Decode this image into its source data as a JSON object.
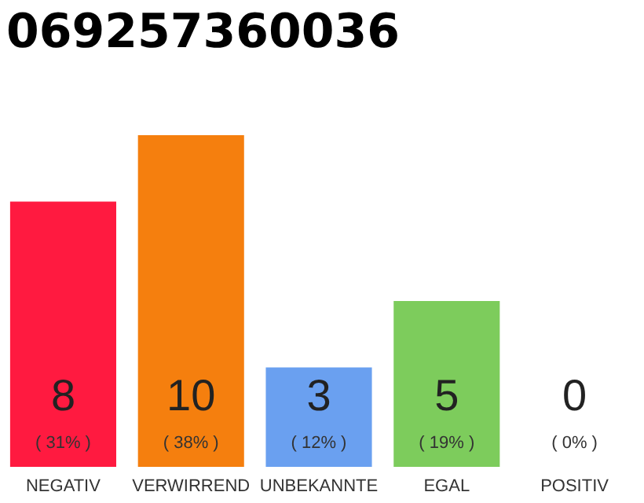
{
  "chart_data": {
    "type": "bar",
    "title": "069257360036",
    "categories": [
      "NEGATIV",
      "VERWIRREND",
      "UNBEKANNTE",
      "EGAL",
      "POSITIV"
    ],
    "values": [
      8,
      10,
      3,
      5,
      0
    ],
    "colors": [
      "#ff1a40",
      "#f57f0e",
      "#6aa0f0",
      "#7dcc5c",
      "#d0d0d0"
    ],
    "ylim": [
      0,
      10
    ],
    "data_labels": true,
    "grid": false,
    "legend": false,
    "tick_labels": "x",
    "annotations": [
      "( 31% )",
      "( 38% )",
      "( 12% )",
      "( 19% )",
      "( 0% )"
    ]
  }
}
